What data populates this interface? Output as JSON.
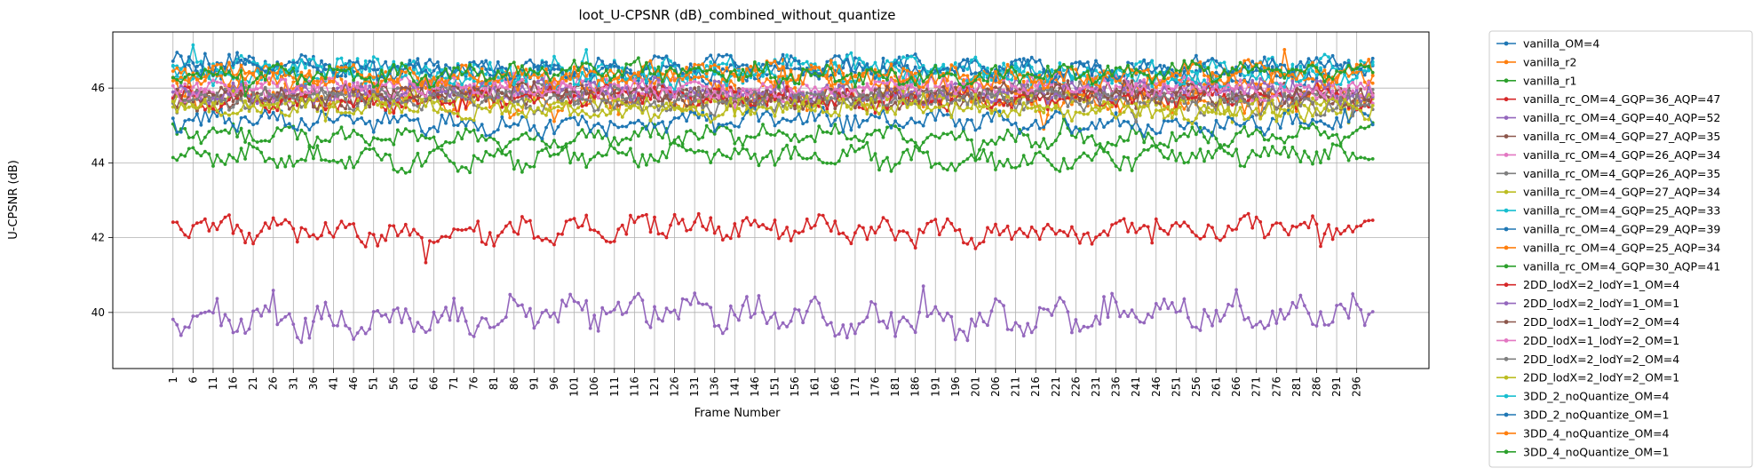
{
  "chart_data": {
    "type": "line",
    "title": "loot_U-CPSNR (dB)_combined_without_quantize",
    "xlabel": "Frame Number",
    "ylabel": "U-CPSNR (dB)",
    "xlim": [
      -14,
      314
    ],
    "ylim": [
      38.5,
      47.5
    ],
    "xticks": [
      1,
      6,
      11,
      16,
      21,
      26,
      31,
      36,
      41,
      46,
      51,
      56,
      61,
      66,
      71,
      76,
      81,
      86,
      91,
      96,
      101,
      106,
      111,
      116,
      121,
      126,
      131,
      136,
      141,
      146,
      151,
      156,
      161,
      166,
      171,
      176,
      181,
      186,
      191,
      196,
      201,
      206,
      211,
      216,
      221,
      226,
      231,
      236,
      241,
      246,
      251,
      256,
      261,
      266,
      271,
      276,
      281,
      286,
      291,
      296
    ],
    "yticks": [
      40,
      42,
      44,
      46
    ],
    "grid": true,
    "legend_position": "outside-right",
    "frames": 300,
    "series": [
      {
        "name": "vanilla_OM=4",
        "color": "#1f77b4",
        "mean": 46.45,
        "amp": 0.22
      },
      {
        "name": "vanilla_r2",
        "color": "#ff7f0e",
        "mean": 45.75,
        "amp": 0.3
      },
      {
        "name": "vanilla_r1",
        "color": "#2ca02c",
        "mean": 44.7,
        "amp": 0.2
      },
      {
        "name": "vanilla_rc_OM=4_GQP=36_AQP=47",
        "color": "#d62728",
        "mean": 42.2,
        "amp": 0.25
      },
      {
        "name": "vanilla_rc_OM=4_GQP=40_AQP=52",
        "color": "#9467bd",
        "mean": 39.9,
        "amp": 0.35
      },
      {
        "name": "vanilla_rc_OM=4_GQP=27_AQP=35",
        "color": "#8c564b",
        "mean": 45.8,
        "amp": 0.2
      },
      {
        "name": "vanilla_rc_OM=4_GQP=26_AQP=34",
        "color": "#e377c2",
        "mean": 45.95,
        "amp": 0.2
      },
      {
        "name": "vanilla_rc_OM=4_GQP=26_AQP=35",
        "color": "#7f7f7f",
        "mean": 45.85,
        "amp": 0.2
      },
      {
        "name": "vanilla_rc_OM=4_GQP=27_AQP=34",
        "color": "#bcbd22",
        "mean": 45.6,
        "amp": 0.2
      },
      {
        "name": "vanilla_rc_OM=4_GQP=25_AQP=33",
        "color": "#17becf",
        "mean": 46.35,
        "amp": 0.22
      },
      {
        "name": "vanilla_rc_OM=4_GQP=29_AQP=39",
        "color": "#1f77b4",
        "mean": 45.1,
        "amp": 0.22
      },
      {
        "name": "vanilla_rc_OM=4_GQP=25_AQP=34",
        "color": "#ff7f0e",
        "mean": 46.2,
        "amp": 0.22
      },
      {
        "name": "vanilla_rc_OM=4_GQP=30_AQP=41",
        "color": "#2ca02c",
        "mean": 44.15,
        "amp": 0.22
      },
      {
        "name": "2DD_lodX=2_lodY=1_OM=4",
        "color": "#d62728",
        "mean": 45.7,
        "amp": 0.2
      },
      {
        "name": "2DD_lodX=2_lodY=1_OM=1",
        "color": "#9467bd",
        "mean": 45.9,
        "amp": 0.2
      },
      {
        "name": "2DD_lodX=1_lodY=2_OM=4",
        "color": "#8c564b",
        "mean": 45.8,
        "amp": 0.2
      },
      {
        "name": "2DD_lodX=1_lodY=2_OM=1",
        "color": "#e377c2",
        "mean": 46.0,
        "amp": 0.2
      },
      {
        "name": "2DD_lodX=2_lodY=2_OM=4",
        "color": "#7f7f7f",
        "mean": 45.65,
        "amp": 0.2
      },
      {
        "name": "2DD_lodX=2_lodY=2_OM=1",
        "color": "#bcbd22",
        "mean": 45.45,
        "amp": 0.2
      },
      {
        "name": "3DD_2_noQuantize_OM=4",
        "color": "#17becf",
        "mean": 46.5,
        "amp": 0.22
      },
      {
        "name": "3DD_2_noQuantize_OM=1",
        "color": "#1f77b4",
        "mean": 46.55,
        "amp": 0.2
      },
      {
        "name": "3DD_4_noQuantize_OM=4",
        "color": "#ff7f0e",
        "mean": 46.35,
        "amp": 0.22
      },
      {
        "name": "3DD_4_noQuantize_OM=1",
        "color": "#2ca02c",
        "mean": 46.4,
        "amp": 0.2
      }
    ]
  }
}
